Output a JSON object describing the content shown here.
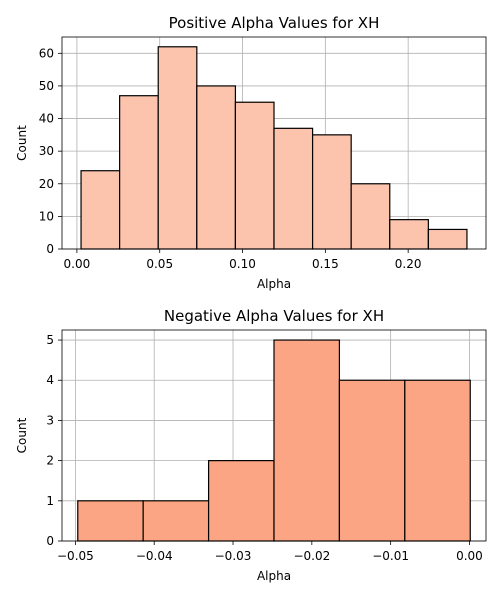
{
  "chart_data": [
    {
      "type": "bar",
      "title": "Positive Alpha Values for XH",
      "xlabel": "Alpha",
      "ylabel": "Count",
      "bin_edges": [
        0.0025,
        0.0258,
        0.0491,
        0.0724,
        0.0957,
        0.119,
        0.1423,
        0.1656,
        0.1889,
        0.2122,
        0.2355
      ],
      "values": [
        24,
        47,
        62,
        50,
        45,
        37,
        35,
        20,
        9,
        6
      ],
      "xlim": [
        -0.009,
        0.247
      ],
      "ylim": [
        0,
        65
      ],
      "xticks": [
        0.0,
        0.05,
        0.1,
        0.15,
        0.2
      ],
      "xtick_labels": [
        "0.00",
        "0.05",
        "0.10",
        "0.15",
        "0.20"
      ],
      "yticks": [
        0,
        10,
        20,
        30,
        40,
        50,
        60
      ],
      "ytick_labels": [
        "0",
        "10",
        "20",
        "30",
        "40",
        "50",
        "60"
      ],
      "grid": true,
      "bar_color": "#fcc4ad",
      "edge_color": "#000000"
    },
    {
      "type": "bar",
      "title": "Negative Alpha Values for XH",
      "xlabel": "Alpha",
      "ylabel": "Count",
      "bin_edges": [
        -0.0497,
        -0.0414,
        -0.0331,
        -0.0248,
        -0.0165,
        -0.0082,
        0.0001
      ],
      "values": [
        1,
        1,
        2,
        5,
        4,
        4
      ],
      "xlim": [
        -0.0517,
        0.0021
      ],
      "ylim": [
        0,
        5.25
      ],
      "xticks": [
        -0.05,
        -0.04,
        -0.03,
        -0.02,
        -0.01,
        0.0
      ],
      "xtick_labels": [
        "−0.05",
        "−0.04",
        "−0.03",
        "−0.02",
        "−0.01",
        "0.00"
      ],
      "yticks": [
        0,
        1,
        2,
        3,
        4,
        5
      ],
      "ytick_labels": [
        "0",
        "1",
        "2",
        "3",
        "4",
        "5"
      ],
      "grid": true,
      "bar_color": "#fca584",
      "edge_color": "#000000"
    }
  ]
}
